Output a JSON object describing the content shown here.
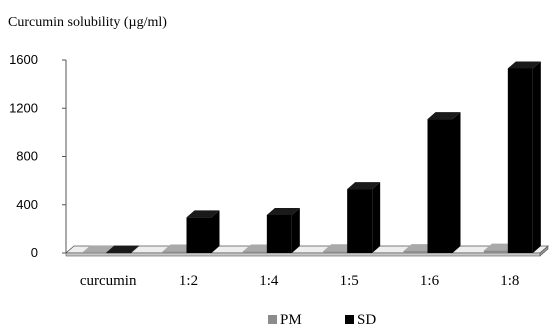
{
  "chart_data": {
    "type": "bar",
    "ylabel": "Curcumin solubility (µg/ml)",
    "categories": [
      "curcumin",
      "1:2",
      "1:4",
      "1:5",
      "1:6",
      "1:8"
    ],
    "yticks": [
      "0",
      "400",
      "800",
      "1200",
      "1600"
    ],
    "ylim": [
      0,
      1600
    ],
    "series": [
      {
        "name": "PM",
        "values": [
          3,
          12,
          12,
          14,
          16,
          20
        ]
      },
      {
        "name": "SD",
        "values": [
          3,
          295,
          315,
          530,
          1110,
          1530
        ]
      }
    ],
    "legend_position": "bottom-center",
    "grid": false
  },
  "colors": {
    "pm": "#8c8c8c",
    "sd": "#000000",
    "floor": "#c8c8c8",
    "axis": "#555555"
  }
}
